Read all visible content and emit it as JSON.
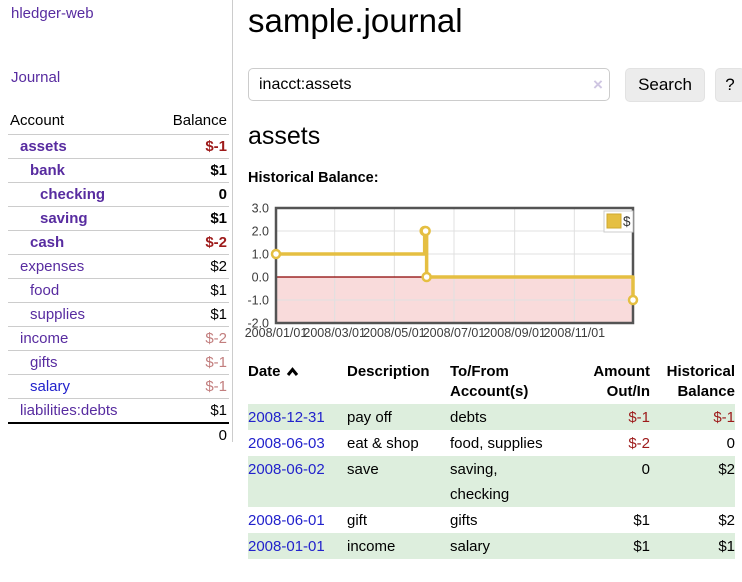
{
  "app": {
    "title": "hledger-web"
  },
  "sidebar": {
    "nav": {
      "journal_label": "Journal"
    },
    "accounts_table": {
      "headers": {
        "account": "Account",
        "balance": "Balance"
      },
      "rows": [
        {
          "account": "assets",
          "indent": 1,
          "bold": true,
          "balance": "$-1",
          "balance_style": "neg-bold"
        },
        {
          "account": "bank",
          "indent": 2,
          "bold": true,
          "balance": "$1",
          "balance_style": "bold"
        },
        {
          "account": "checking",
          "indent": 3,
          "bold": true,
          "balance": "0",
          "balance_style": "bold"
        },
        {
          "account": "saving",
          "indent": 3,
          "bold": true,
          "balance": "$1",
          "balance_style": "bold"
        },
        {
          "account": "cash",
          "indent": 2,
          "bold": true,
          "balance": "$-2",
          "balance_style": "neg-bold"
        },
        {
          "account": "expenses",
          "indent": 1,
          "bold": false,
          "balance": "$2",
          "balance_style": "plain"
        },
        {
          "account": "food",
          "indent": 2,
          "bold": false,
          "balance": "$1",
          "balance_style": "plain"
        },
        {
          "account": "supplies",
          "indent": 2,
          "bold": false,
          "balance": "$1",
          "balance_style": "plain"
        },
        {
          "account": "income",
          "indent": 1,
          "bold": false,
          "balance": "$-2",
          "balance_style": "neg-light"
        },
        {
          "account": "gifts",
          "indent": 2,
          "bold": false,
          "balance": "$-1",
          "balance_style": "neg-light"
        },
        {
          "account": "salary",
          "indent": 2,
          "bold": false,
          "link_color": "blue",
          "balance": "$-1",
          "balance_style": "neg-light"
        },
        {
          "account": "liabilities:debts",
          "indent": 1,
          "bold": false,
          "balance": "$1",
          "balance_style": "plain"
        }
      ],
      "total": "0"
    }
  },
  "header": {
    "title": "sample.journal"
  },
  "search": {
    "value": "inacct:assets",
    "clear_icon": "×",
    "button_label": "Search",
    "help_label": "?"
  },
  "main": {
    "account_title": "assets",
    "chart_label": "Historical Balance:",
    "register": {
      "headers": {
        "date": "Date",
        "description": "Description",
        "accounts": "To/From Account(s)",
        "amount": "Amount Out/In",
        "balance": "Historical Balance"
      },
      "sort": {
        "column": "date",
        "direction": "ascending"
      },
      "rows": [
        {
          "date": "2008-12-31",
          "description": "pay off",
          "accounts": "debts",
          "amount": "$-1",
          "amount_neg": true,
          "balance": "$-1",
          "balance_neg": true,
          "shaded": true
        },
        {
          "date": "2008-06-03",
          "description": "eat & shop",
          "accounts": "food, supplies",
          "amount": "$-2",
          "amount_neg": true,
          "balance": "0",
          "balance_neg": false,
          "shaded": false
        },
        {
          "date": "2008-06-02",
          "description": "save",
          "accounts": "saving, checking",
          "amount": "0",
          "amount_neg": false,
          "balance": "$2",
          "balance_neg": false,
          "shaded": true
        },
        {
          "date": "2008-06-01",
          "description": "gift",
          "accounts": "gifts",
          "amount": "$1",
          "amount_neg": false,
          "balance": "$2",
          "balance_neg": false,
          "shaded": false
        },
        {
          "date": "2008-01-01",
          "description": "income",
          "accounts": "salary",
          "amount": "$1",
          "amount_neg": false,
          "balance": "$1",
          "balance_neg": false,
          "shaded": true
        }
      ]
    }
  },
  "chart_data": {
    "type": "line",
    "step": true,
    "title": "Historical Balance",
    "series": [
      {
        "name": "$",
        "color": "#e5bf42",
        "points": [
          [
            "2008-01-01",
            1
          ],
          [
            "2008-06-01",
            2
          ],
          [
            "2008-06-02",
            2
          ],
          [
            "2008-06-03",
            0
          ],
          [
            "2008-12-31",
            -1
          ]
        ]
      }
    ],
    "xlim": [
      "2008-01-01",
      "2008-12-31"
    ],
    "ylim": [
      -2,
      3
    ],
    "yticks": [
      "3.0",
      "2.0",
      "1.0",
      "0.0",
      "-1.0",
      "-2.0"
    ],
    "xticks": [
      "2008/01/01",
      "2008/03/01",
      "2008/05/01",
      "2008/07/01",
      "2008/09/01",
      "2008/11/01"
    ],
    "grid": true,
    "legend_position": "top-right",
    "legend_label": "$",
    "negative_fill": "#f9dbdb",
    "zero_line_color": "#8b0000"
  },
  "colors": {
    "link_purple": "#582ca0",
    "link_blue": "#2222cc",
    "negative_red": "#9d1a1a",
    "negative_rose": "#c27e7e",
    "row_shade_green": "#ddeedd",
    "chart_line_gold": "#e5bf42",
    "chart_negative_pink": "#f9dbdb"
  }
}
